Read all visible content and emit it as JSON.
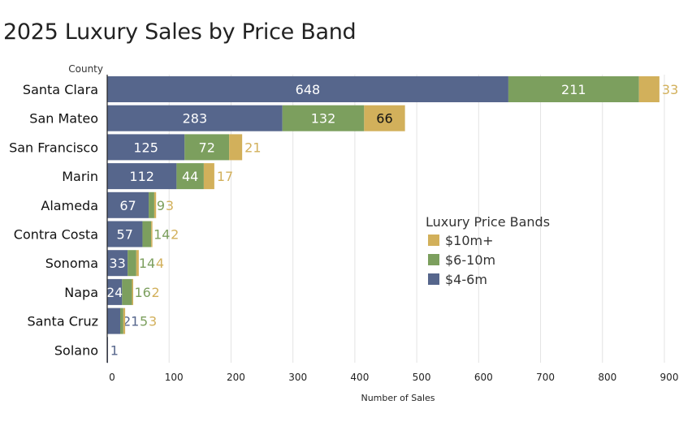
{
  "chart_data": {
    "type": "bar",
    "orientation": "horizontal",
    "stacked": true,
    "title": "2025 Luxury Sales by Price Band",
    "xlabel": "Number of Sales",
    "ylabel": "County",
    "xlim": [
      0,
      900
    ],
    "xticks": [
      0,
      100,
      200,
      300,
      400,
      500,
      600,
      700,
      800,
      900
    ],
    "grid": "vertical",
    "legend_title": "Luxury Price Bands",
    "legend_position": "right",
    "legend_order": [
      "$10m+",
      "$6-10m",
      "$4-6m"
    ],
    "categories": [
      "Santa Clara",
      "San Mateo",
      "San Francisco",
      "Marin",
      "Alameda",
      "Contra Costa",
      "Sonoma",
      "Napa",
      "Santa Cruz",
      "Solano"
    ],
    "series": [
      {
        "name": "$4-6m",
        "color": "#56668c",
        "values": [
          648,
          283,
          125,
          112,
          67,
          57,
          33,
          24,
          21,
          1
        ]
      },
      {
        "name": "$6-10m",
        "color": "#7c9f5e",
        "values": [
          211,
          132,
          72,
          44,
          9,
          14,
          14,
          16,
          5,
          0
        ]
      },
      {
        "name": "$10m+",
        "color": "#d2b05b",
        "values": [
          33,
          66,
          21,
          17,
          3,
          2,
          4,
          2,
          3,
          0
        ]
      }
    ]
  }
}
